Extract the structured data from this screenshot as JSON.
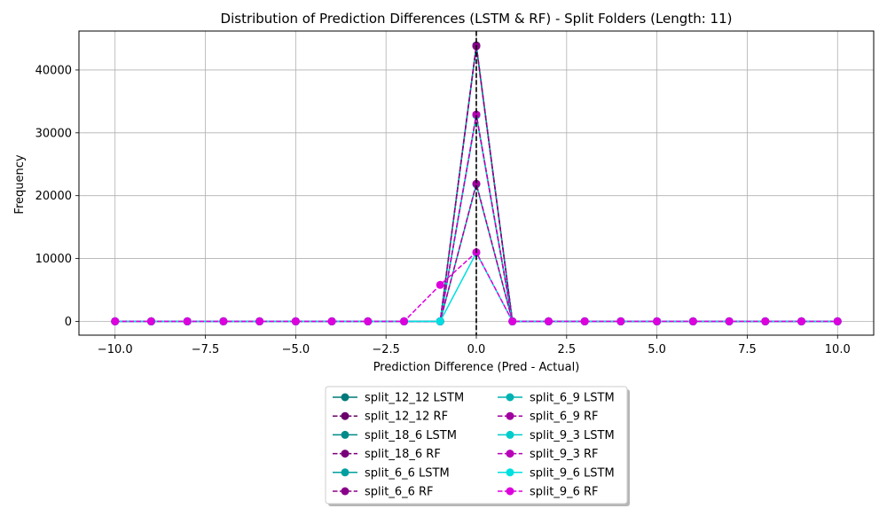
{
  "chart_data": {
    "type": "line",
    "title": "Distribution of Prediction Differences (LSTM & RF) - Split Folders (Length: 11)",
    "xlabel": "Prediction Difference (Pred - Actual)",
    "ylabel": "Frequency",
    "xlim": [
      -11,
      11
    ],
    "ylim": [
      -2200,
      46200
    ],
    "xticks": [
      -10,
      -7.5,
      -5,
      -2.5,
      0,
      2.5,
      5,
      7.5,
      10
    ],
    "xtick_labels": [
      "−10.0",
      "−7.5",
      "−5.0",
      "−2.5",
      "0.0",
      "2.5",
      "5.0",
      "7.5",
      "10.0"
    ],
    "yticks": [
      0,
      10000,
      20000,
      30000,
      40000
    ],
    "ytick_labels": [
      "0",
      "10000",
      "20000",
      "30000",
      "40000"
    ],
    "grid": true,
    "reference_line": {
      "x": 0,
      "style": "dashed",
      "color": "#000000"
    },
    "legend": {
      "placement": "bottom-center",
      "columns": 2
    },
    "series": [
      {
        "name": "split_12_12 LSTM",
        "color": "#007a7a",
        "dash": false,
        "x": [
          -10,
          -9,
          -8,
          -7,
          -6,
          -5,
          -4,
          -3,
          -2,
          -1,
          0,
          1,
          2,
          3,
          4,
          5,
          6,
          7,
          8,
          9,
          10
        ],
        "y": [
          0,
          0,
          0,
          0,
          0,
          0,
          0,
          0,
          0,
          0,
          43900,
          0,
          0,
          0,
          0,
          0,
          0,
          0,
          0,
          0,
          0
        ]
      },
      {
        "name": "split_12_12 RF",
        "color": "#6a006a",
        "dash": true,
        "x": [
          -10,
          -9,
          -8,
          -7,
          -6,
          -5,
          -4,
          -3,
          -2,
          -1,
          0,
          1,
          2,
          3,
          4,
          5,
          6,
          7,
          8,
          9,
          10
        ],
        "y": [
          0,
          0,
          0,
          0,
          0,
          0,
          0,
          0,
          0,
          0,
          43900,
          0,
          0,
          0,
          0,
          0,
          0,
          0,
          0,
          0,
          0
        ]
      },
      {
        "name": "split_18_6 LSTM",
        "color": "#008a8a",
        "dash": false,
        "x": [
          -10,
          -9,
          -8,
          -7,
          -6,
          -5,
          -4,
          -3,
          -2,
          -1,
          0,
          1,
          2,
          3,
          4,
          5,
          6,
          7,
          8,
          9,
          10
        ],
        "y": [
          0,
          0,
          0,
          0,
          0,
          0,
          0,
          0,
          0,
          0,
          32800,
          0,
          0,
          0,
          0,
          0,
          0,
          0,
          0,
          0,
          0
        ]
      },
      {
        "name": "split_18_6 RF",
        "color": "#7a007a",
        "dash": true,
        "x": [
          -10,
          -9,
          -8,
          -7,
          -6,
          -5,
          -4,
          -3,
          -2,
          -1,
          0,
          1,
          2,
          3,
          4,
          5,
          6,
          7,
          8,
          9,
          10
        ],
        "y": [
          0,
          0,
          0,
          0,
          0,
          0,
          0,
          0,
          0,
          0,
          32900,
          0,
          0,
          0,
          0,
          0,
          0,
          0,
          0,
          0,
          0
        ]
      },
      {
        "name": "split_6_6 LSTM",
        "color": "#009f9f",
        "dash": false,
        "x": [
          -10,
          -9,
          -8,
          -7,
          -6,
          -5,
          -4,
          -3,
          -2,
          -1,
          0,
          1,
          2,
          3,
          4,
          5,
          6,
          7,
          8,
          9,
          10
        ],
        "y": [
          0,
          0,
          0,
          0,
          0,
          0,
          0,
          0,
          0,
          0,
          43800,
          0,
          0,
          0,
          0,
          0,
          0,
          0,
          0,
          0,
          0
        ]
      },
      {
        "name": "split_6_6 RF",
        "color": "#8a008a",
        "dash": true,
        "x": [
          -10,
          -9,
          -8,
          -7,
          -6,
          -5,
          -4,
          -3,
          -2,
          -1,
          0,
          1,
          2,
          3,
          4,
          5,
          6,
          7,
          8,
          9,
          10
        ],
        "y": [
          0,
          0,
          0,
          0,
          0,
          0,
          0,
          0,
          0,
          0,
          43800,
          0,
          0,
          0,
          0,
          0,
          0,
          0,
          0,
          0,
          0
        ]
      },
      {
        "name": "split_6_9 LSTM",
        "color": "#00b2b2",
        "dash": false,
        "x": [
          -10,
          -9,
          -8,
          -7,
          -6,
          -5,
          -4,
          -3,
          -2,
          -1,
          0,
          1,
          2,
          3,
          4,
          5,
          6,
          7,
          8,
          9,
          10
        ],
        "y": [
          0,
          0,
          0,
          0,
          0,
          0,
          0,
          0,
          0,
          0,
          21800,
          0,
          0,
          0,
          0,
          0,
          0,
          0,
          0,
          0,
          0
        ]
      },
      {
        "name": "split_6_9 RF",
        "color": "#a000a0",
        "dash": true,
        "x": [
          -10,
          -9,
          -8,
          -7,
          -6,
          -5,
          -4,
          -3,
          -2,
          -1,
          0,
          1,
          2,
          3,
          4,
          5,
          6,
          7,
          8,
          9,
          10
        ],
        "y": [
          0,
          0,
          0,
          0,
          0,
          0,
          0,
          0,
          0,
          0,
          21900,
          0,
          0,
          0,
          0,
          0,
          0,
          0,
          0,
          0,
          0
        ]
      },
      {
        "name": "split_9_3 LSTM",
        "color": "#00cccc",
        "dash": false,
        "x": [
          -10,
          -9,
          -8,
          -7,
          -6,
          -5,
          -4,
          -3,
          -2,
          -1,
          0,
          1,
          2,
          3,
          4,
          5,
          6,
          7,
          8,
          9,
          10
        ],
        "y": [
          0,
          0,
          0,
          0,
          0,
          0,
          0,
          0,
          0,
          0,
          32800,
          0,
          0,
          0,
          0,
          0,
          0,
          0,
          0,
          0,
          0
        ]
      },
      {
        "name": "split_9_3 RF",
        "color": "#b800b8",
        "dash": true,
        "x": [
          -10,
          -9,
          -8,
          -7,
          -6,
          -5,
          -4,
          -3,
          -2,
          -1,
          0,
          1,
          2,
          3,
          4,
          5,
          6,
          7,
          8,
          9,
          10
        ],
        "y": [
          0,
          0,
          0,
          0,
          0,
          0,
          0,
          0,
          0,
          0,
          32900,
          0,
          0,
          0,
          0,
          0,
          0,
          0,
          0,
          0,
          0
        ]
      },
      {
        "name": "split_9_6 LSTM",
        "color": "#00e0e0",
        "dash": false,
        "x": [
          -10,
          -9,
          -8,
          -7,
          -6,
          -5,
          -4,
          -3,
          -2,
          -1,
          0,
          1,
          2,
          3,
          4,
          5,
          6,
          7,
          8,
          9,
          10
        ],
        "y": [
          0,
          0,
          0,
          0,
          0,
          0,
          0,
          0,
          0,
          0,
          10900,
          0,
          0,
          0,
          0,
          0,
          0,
          0,
          0,
          0,
          0
        ]
      },
      {
        "name": "split_9_6 RF",
        "color": "#dd00dd",
        "dash": true,
        "x": [
          -10,
          -9,
          -8,
          -7,
          -6,
          -5,
          -4,
          -3,
          -2,
          -1,
          0,
          1,
          2,
          3,
          4,
          5,
          6,
          7,
          8,
          9,
          10
        ],
        "y": [
          0,
          0,
          0,
          0,
          0,
          0,
          0,
          0,
          0,
          5800,
          11000,
          0,
          0,
          0,
          0,
          0,
          0,
          0,
          0,
          0,
          0
        ]
      }
    ]
  }
}
